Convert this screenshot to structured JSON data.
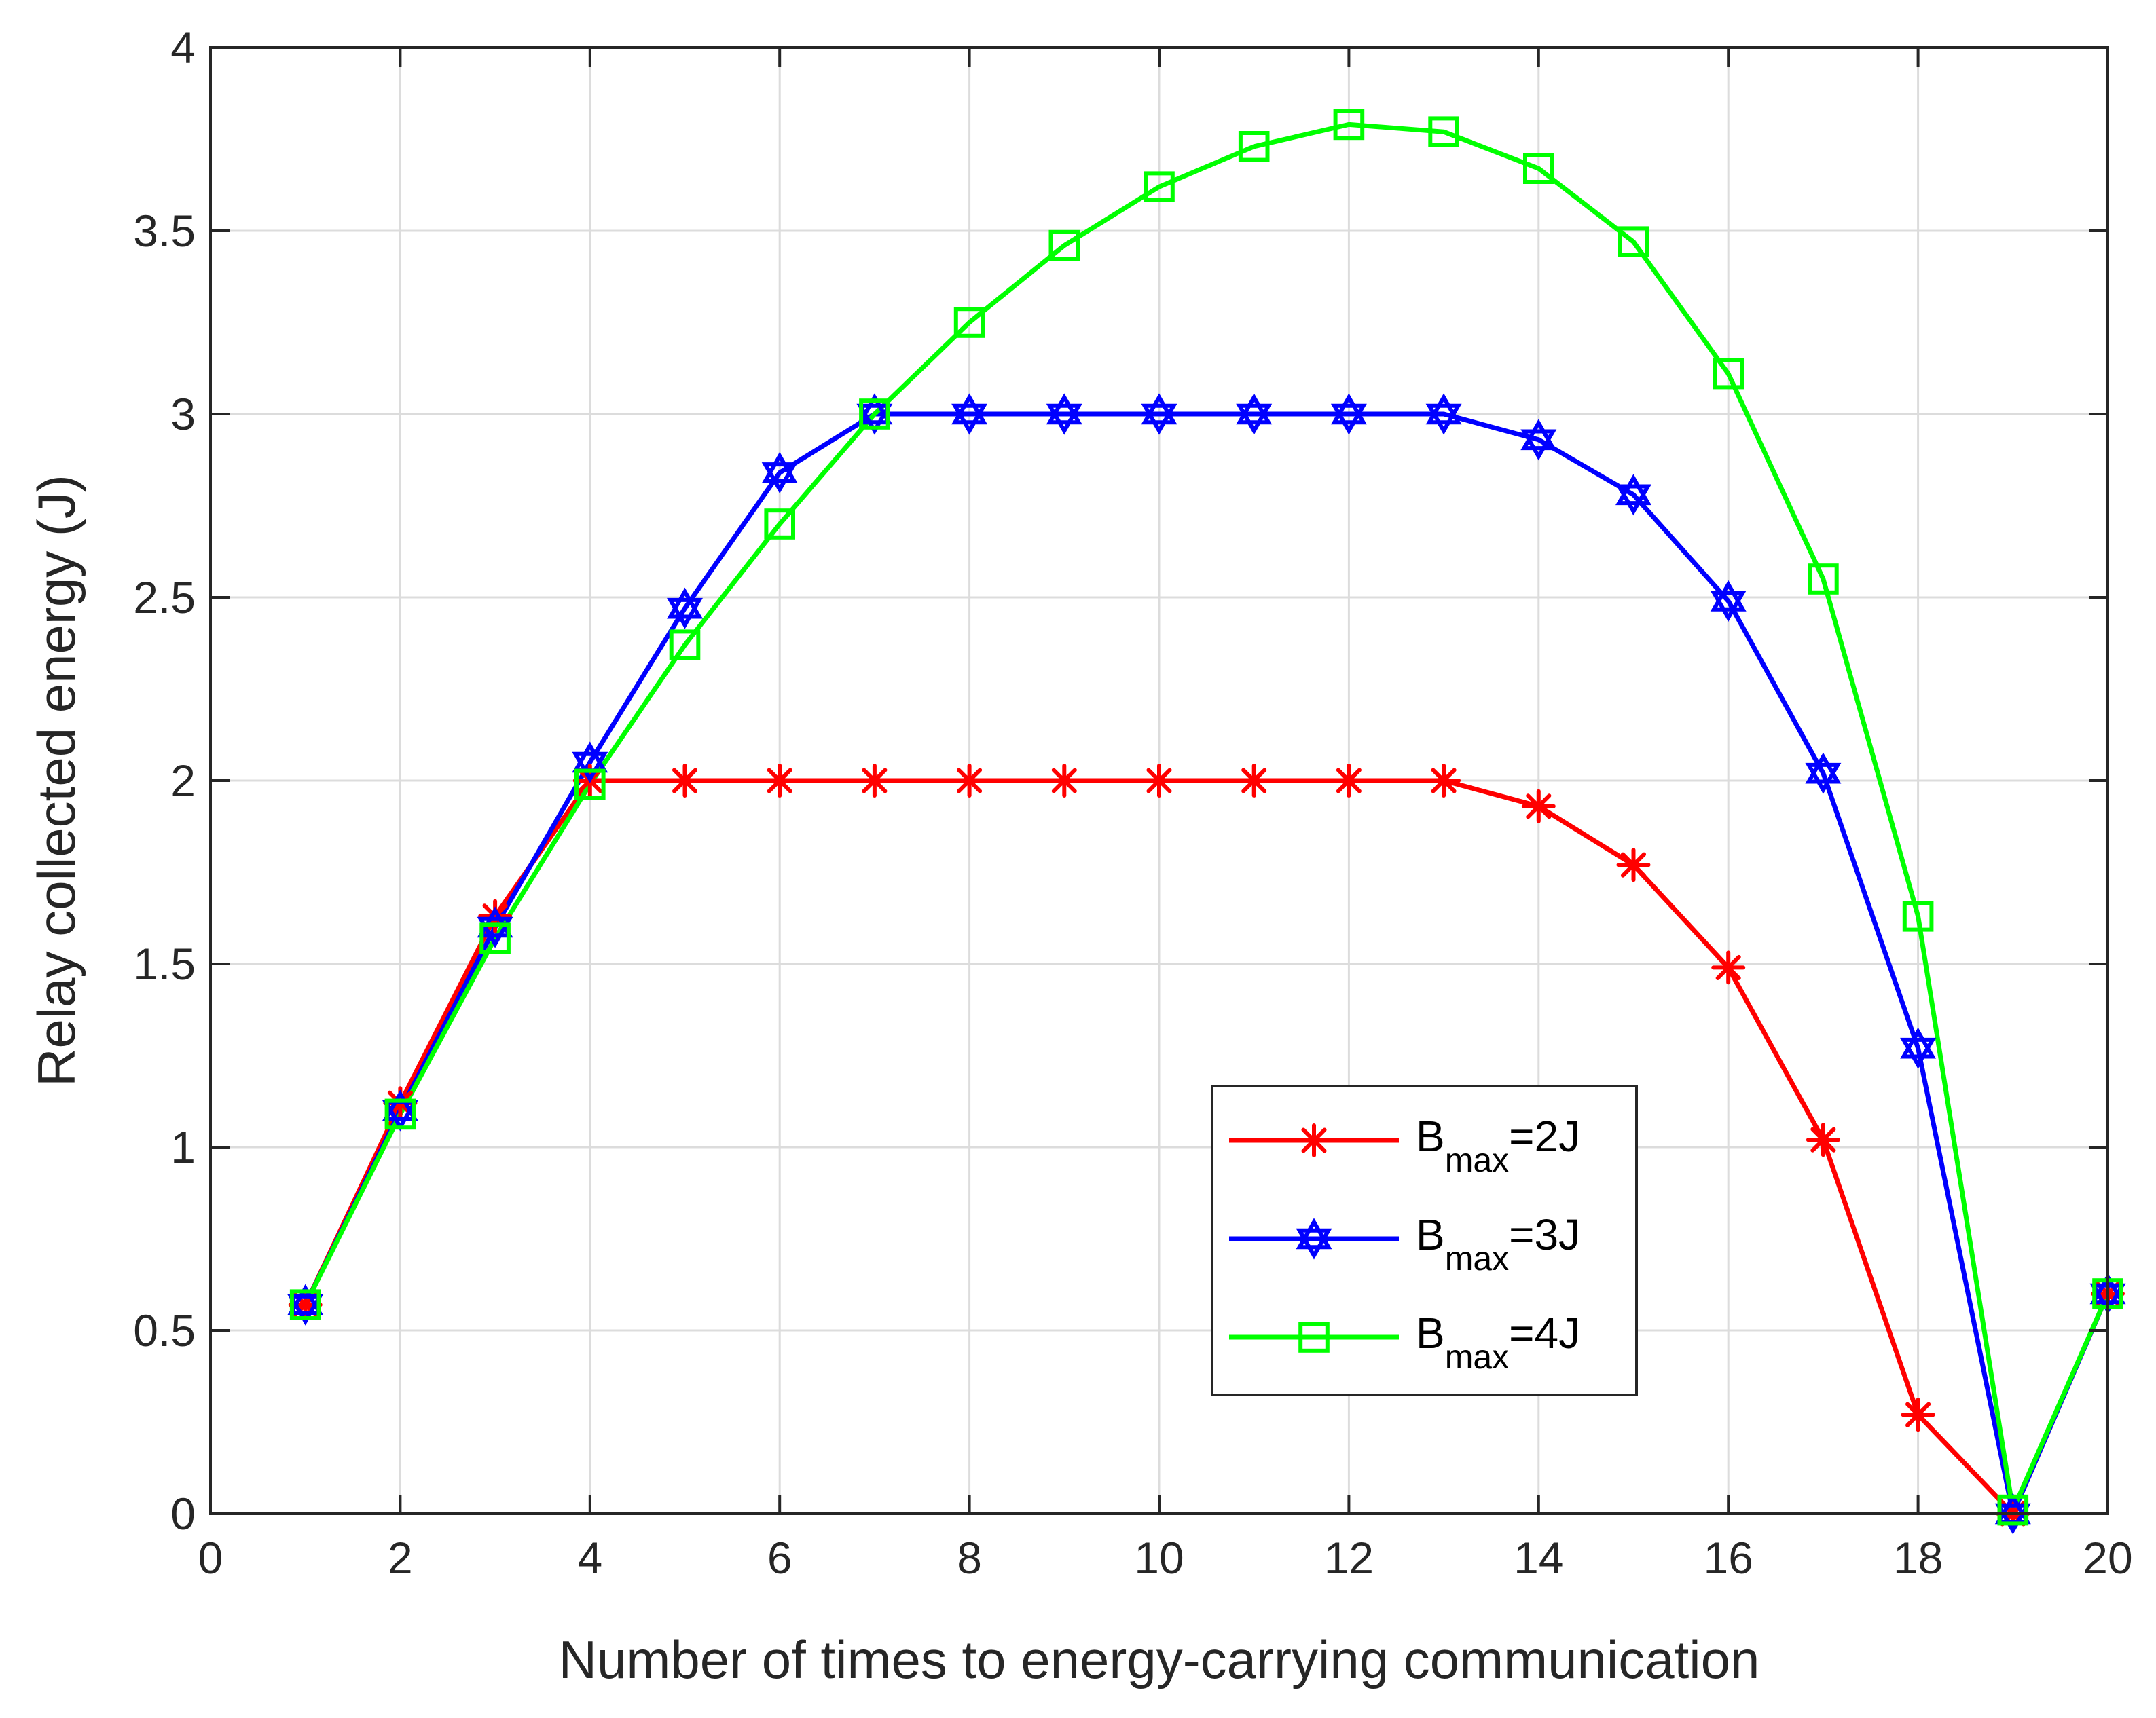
{
  "chart_data": {
    "type": "line",
    "title": "",
    "xlabel": "Number of times to energy-carrying communication",
    "ylabel": "Relay collected energy (J)",
    "xlim": [
      0,
      20
    ],
    "ylim": [
      0,
      4
    ],
    "xticks": [
      "0",
      "2",
      "4",
      "6",
      "8",
      "10",
      "12",
      "14",
      "16",
      "18",
      "20"
    ],
    "yticks": [
      "0",
      "0.5",
      "1",
      "1.5",
      "2",
      "2.5",
      "3",
      "3.5",
      "4"
    ],
    "grid": true,
    "legend_position": "lower-center-right",
    "x": [
      1,
      2,
      3,
      4,
      5,
      6,
      7,
      8,
      9,
      10,
      11,
      12,
      13,
      14,
      15,
      16,
      17,
      18,
      19,
      20
    ],
    "series": [
      {
        "name": "B_max=2J",
        "label_main": "B",
        "label_sub": "max",
        "label_tail": "=2J",
        "color": "#ff0000",
        "marker": "asterisk",
        "values": [
          0.57,
          1.12,
          1.63,
          2.0,
          2.0,
          2.0,
          2.0,
          2.0,
          2.0,
          2.0,
          2.0,
          2.0,
          2.0,
          1.93,
          1.77,
          1.49,
          1.02,
          0.27,
          0.0,
          0.6
        ]
      },
      {
        "name": "B_max=3J",
        "label_main": "B",
        "label_sub": "max",
        "label_tail": "=3J",
        "color": "#0000ff",
        "marker": "hexagram",
        "values": [
          0.57,
          1.1,
          1.6,
          2.05,
          2.47,
          2.84,
          3.0,
          3.0,
          3.0,
          3.0,
          3.0,
          3.0,
          3.0,
          2.93,
          2.78,
          2.49,
          2.02,
          1.27,
          0.0,
          0.6
        ]
      },
      {
        "name": "B_max=4J",
        "label_main": "B",
        "label_sub": "max",
        "label_tail": "=4J",
        "color": "#00ff00",
        "marker": "square",
        "values": [
          0.57,
          1.09,
          1.57,
          1.99,
          2.37,
          2.7,
          3.0,
          3.25,
          3.46,
          3.62,
          3.73,
          3.79,
          3.77,
          3.67,
          3.47,
          3.11,
          2.55,
          1.63,
          0.01,
          0.6
        ]
      }
    ]
  }
}
